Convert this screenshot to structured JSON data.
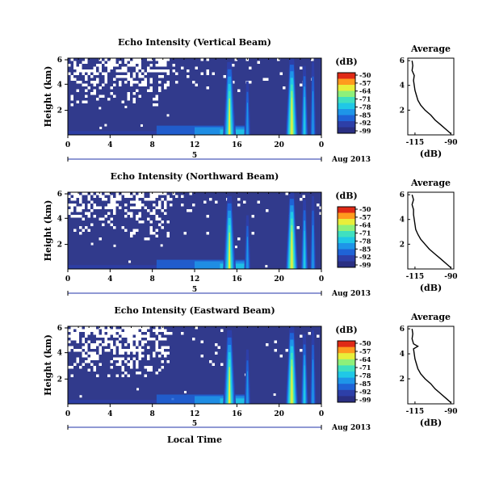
{
  "chart_data": [
    {
      "type": "heatmap",
      "title": "Echo Intensity (Vertical Beam)",
      "ylabel": "Height (km)",
      "xlabel_left": "",
      "date_label": "Aug 2013",
      "x_ticks": [
        "0",
        "4",
        "8",
        "12",
        "16",
        "20",
        "0"
      ],
      "day_label": "5",
      "y_ticks": [
        "6",
        "4",
        "2"
      ],
      "colorbar": {
        "unit": "(dB)",
        "ticks": [
          "-50",
          "-57",
          "-64",
          "-71",
          "-78",
          "-85",
          "-92",
          "-99"
        ]
      },
      "average": {
        "title": "Average",
        "xlabel": "(dB)",
        "x_ticks": [
          "-115",
          "-90"
        ],
        "xlim": [
          -120,
          -88
        ],
        "y_ticks": [
          "6",
          "4",
          "2"
        ],
        "ylim": [
          0,
          6.2
        ],
        "heights": [
          6.0,
          5.6,
          5.2,
          4.8,
          4.4,
          4.0,
          3.6,
          3.2,
          2.8,
          2.4,
          2.0,
          1.6,
          1.2,
          0.8,
          0.4,
          0.1
        ],
        "values": [
          -117,
          -116.5,
          -117,
          -115.5,
          -116,
          -115.5,
          -115,
          -114,
          -113,
          -111,
          -108,
          -104,
          -101,
          -97,
          -93,
          -90
        ]
      }
    },
    {
      "type": "heatmap",
      "title": "Echo Intensity (Northward Beam)",
      "ylabel": "Height (km)",
      "date_label": "Aug 2013",
      "x_ticks": [
        "0",
        "4",
        "8",
        "12",
        "16",
        "20",
        "0"
      ],
      "day_label": "5",
      "y_ticks": [
        "6",
        "4",
        "2"
      ],
      "colorbar": {
        "unit": "(dB)",
        "ticks": [
          "-50",
          "-57",
          "-64",
          "-71",
          "-78",
          "-85",
          "-92",
          "-99"
        ]
      },
      "average": {
        "title": "Average",
        "xlabel": "(dB)",
        "x_ticks": [
          "-115",
          "-90"
        ],
        "xlim": [
          -120,
          -88
        ],
        "y_ticks": [
          "6",
          "4",
          "2"
        ],
        "ylim": [
          0,
          6.2
        ],
        "heights": [
          6.0,
          5.6,
          5.2,
          4.8,
          4.4,
          4.0,
          3.6,
          3.2,
          2.8,
          2.4,
          2.0,
          1.6,
          1.2,
          0.8,
          0.4,
          0.1
        ],
        "values": [
          -117,
          -116,
          -117,
          -116,
          -116,
          -115.5,
          -115,
          -114.5,
          -113,
          -111,
          -108,
          -105,
          -101,
          -97,
          -93,
          -90
        ]
      }
    },
    {
      "type": "heatmap",
      "title": "Echo Intensity (Eastward Beam)",
      "ylabel": "Height (km)",
      "xlabel": "Local Time",
      "date_label": "Aug 2013",
      "x_ticks": [
        "0",
        "4",
        "8",
        "12",
        "16",
        "20",
        "0"
      ],
      "day_label": "5",
      "y_ticks": [
        "6",
        "4",
        "2"
      ],
      "colorbar": {
        "unit": "(dB)",
        "ticks": [
          "-50",
          "-57",
          "-64",
          "-71",
          "-78",
          "-85",
          "-92",
          "-99"
        ]
      },
      "average": {
        "title": "Average",
        "xlabel": "(dB)",
        "x_ticks": [
          "-115",
          "-90"
        ],
        "xlim": [
          -120,
          -88
        ],
        "y_ticks": [
          "6",
          "4",
          "2"
        ],
        "ylim": [
          0,
          6.2
        ],
        "heights": [
          6.0,
          5.6,
          5.2,
          4.8,
          4.6,
          4.4,
          4.0,
          3.6,
          3.2,
          2.8,
          2.4,
          2.0,
          1.6,
          1.2,
          0.8,
          0.4,
          0.1
        ],
        "values": [
          -117,
          -116.5,
          -117,
          -116,
          -113,
          -116,
          -115.5,
          -115,
          -114,
          -113,
          -111,
          -108,
          -104,
          -101,
          -97,
          -93,
          -90
        ]
      }
    }
  ],
  "colors": {
    "background_field": "#313a8c",
    "colormap": [
      "#2a2f82",
      "#2d3fa8",
      "#1f63d6",
      "#1e95e8",
      "#20c8e6",
      "#3fe0c0",
      "#8ef07a",
      "#e8ee3a",
      "#ff9a1e",
      "#e02a16"
    ]
  }
}
